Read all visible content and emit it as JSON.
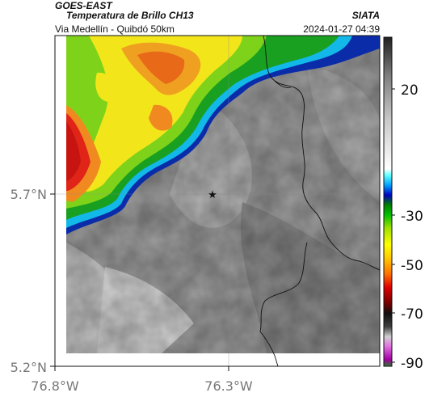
{
  "header": {
    "satellite": "GOES-EAST",
    "product": "Temperatura de Brillo CH13",
    "route": "Via Medellín - Quibdó 50km",
    "organization": "SIATA",
    "datetime": "2024-01-27 04:39"
  },
  "axes": {
    "lat_labels": [
      "5.7°N",
      "5.2°N"
    ],
    "lon_labels": [
      "76.8°W",
      "76.3°W"
    ]
  },
  "colorbar": {
    "labels": [
      "20",
      "-30",
      "-50",
      "-70",
      "-90"
    ]
  },
  "marker": {
    "symbol": "★"
  },
  "colors": {
    "cloud_warm": "#9c9c9c",
    "cold_top": "#e0141c",
    "accent_blue": "#0a2ca8"
  }
}
